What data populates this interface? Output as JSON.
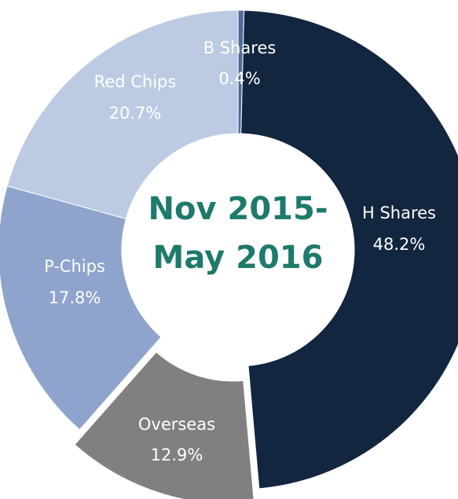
{
  "chart_data": {
    "type": "donut",
    "center_label": [
      "Nov 2015-",
      "May 2016"
    ],
    "categories": [
      "B Shares",
      "H Shares",
      "Overseas",
      "P-Chips",
      "Red Chips"
    ],
    "values": [
      0.4,
      48.2,
      12.9,
      17.8,
      20.7
    ],
    "value_labels": [
      "0.4%",
      "48.2%",
      "12.9%",
      "17.8%",
      "20.7%"
    ],
    "colors": [
      "#4d6e9a",
      "#13263f",
      "#808080",
      "#8ea4cc",
      "#bccbe3"
    ],
    "exploded": [
      false,
      false,
      true,
      false,
      false
    ]
  }
}
